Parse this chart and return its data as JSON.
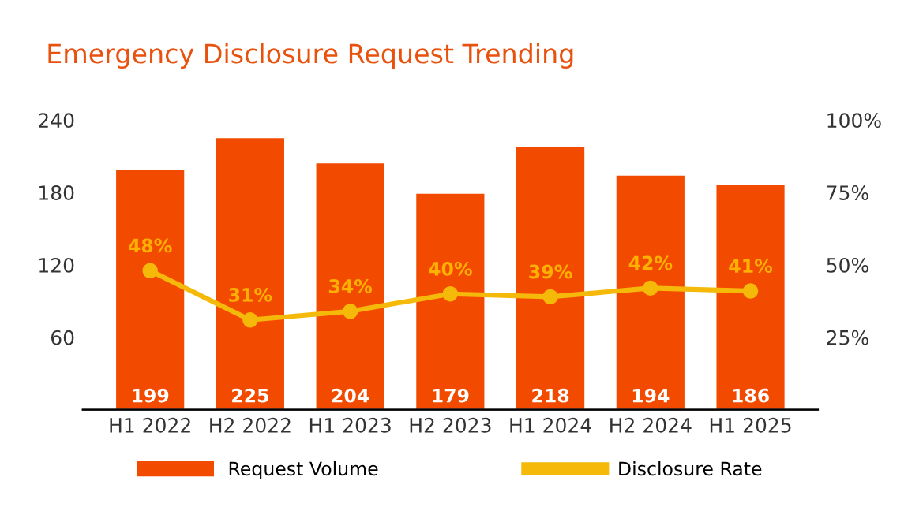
{
  "chart_data": {
    "type": "bar",
    "title": "Emergency Disclosure Request Trending",
    "categories": [
      "H1 2022",
      "H2 2022",
      "H1 2023",
      "H2 2023",
      "H1 2024",
      "H2 2024",
      "H1 2025"
    ],
    "series": [
      {
        "name": "Request Volume",
        "color": "#f24b00",
        "values": [
          199,
          225,
          204,
          179,
          218,
          194,
          186
        ]
      },
      {
        "name": "Disclosure Rate",
        "type": "line",
        "axis": "y2",
        "color": "#f5b90a",
        "values": [
          48,
          31,
          34,
          40,
          39,
          42,
          41
        ],
        "value_labels": [
          "48%",
          "31%",
          "34%",
          "40%",
          "39%",
          "42%",
          "41%"
        ]
      }
    ],
    "ylim": [
      0,
      240
    ],
    "yticks": [
      60,
      120,
      180,
      240
    ],
    "y2lim": [
      0,
      100
    ],
    "y2ticks": [
      {
        "value": 25,
        "label": "25%"
      },
      {
        "value": 50,
        "label": "50%"
      },
      {
        "value": 75,
        "label": "75%"
      },
      {
        "value": 100,
        "label": "100%"
      }
    ],
    "data_labels": true,
    "grid": false,
    "legend": "bottom",
    "marker": "circle",
    "line_style": "solid"
  }
}
